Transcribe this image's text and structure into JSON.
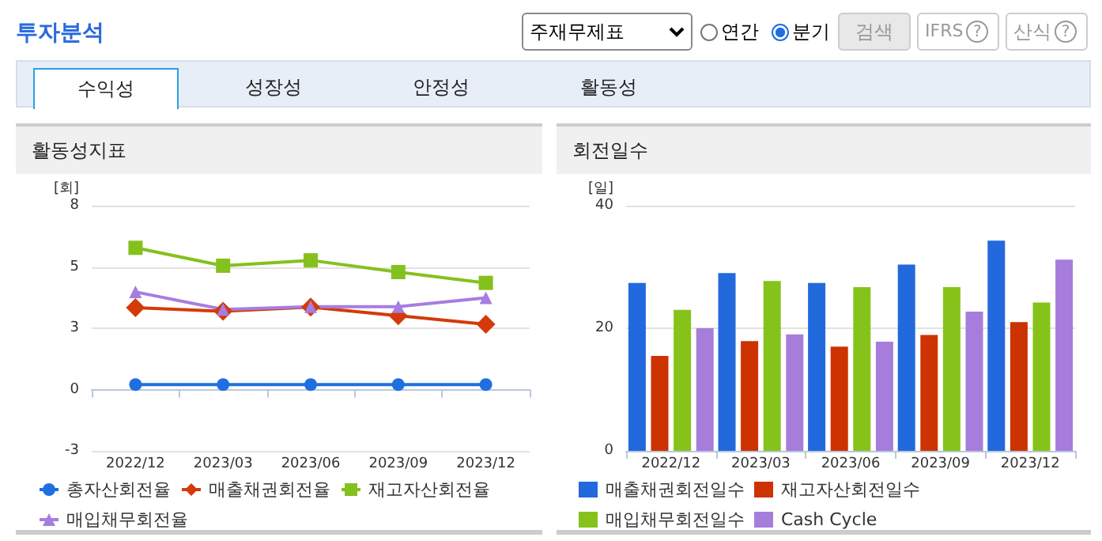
{
  "chart_data": [
    {
      "type": "other",
      "title": "투자분석",
      "annotations": [
        "주재무제표",
        "연간",
        "분기",
        "검색",
        "IFRS",
        "산식",
        "수익성",
        "성장성",
        "안정성",
        "활동성",
        "?",
        "?"
      ]
    },
    {
      "type": "line",
      "title": "활동성지표",
      "ylabel": "[회]",
      "categories": [
        "2022/12",
        "2023/03",
        "2023/06",
        "2023/09",
        "2023/12"
      ],
      "ylim": [
        -2.5,
        7.5
      ],
      "yticks": [
        {
          "value": -2.5,
          "label": "-3"
        },
        0,
        {
          "value": 2.5,
          "label": "3"
        },
        5,
        {
          "value": 7.5,
          "label": "8"
        }
      ],
      "grid": "y",
      "legend": "bottom",
      "series": [
        {
          "name": "총자산회전율",
          "color": "#1f6fe0",
          "marker": "circle",
          "values": [
            0.2,
            0.2,
            0.2,
            0.2,
            0.2
          ]
        },
        {
          "name": "매출채권회전율",
          "color": "#d43a0a",
          "marker": "diamond",
          "values": [
            3.34,
            3.19,
            3.36,
            3.01,
            2.66
          ]
        },
        {
          "name": "재고자산회전율",
          "color": "#84c11e",
          "marker": "square",
          "values": [
            5.78,
            5.05,
            5.27,
            4.79,
            4.35
          ]
        },
        {
          "name": "매입채무회전율",
          "color": "#a67de0",
          "marker": "triangle",
          "values": [
            3.98,
            3.27,
            3.38,
            3.38,
            3.74
          ]
        }
      ]
    },
    {
      "type": "bar",
      "title": "회전일수",
      "ylabel": "[일]",
      "categories": [
        "2022/12",
        "2023/03",
        "2023/06",
        "2023/09",
        "2023/12"
      ],
      "ylim": [
        0,
        40
      ],
      "yticks": [
        0,
        20,
        40
      ],
      "grid": "y",
      "legend": "bottom",
      "series": [
        {
          "name": "매출채권회전일수",
          "color": "#2269dd",
          "values": [
            27.4,
            29.0,
            27.4,
            30.4,
            34.3
          ]
        },
        {
          "name": "재고자산회전일수",
          "color": "#cc3300",
          "values": [
            15.5,
            17.9,
            17.0,
            18.9,
            21.0
          ]
        },
        {
          "name": "매입채무회전일수",
          "color": "#86c31a",
          "values": [
            23.0,
            27.7,
            26.7,
            26.7,
            24.2
          ]
        },
        {
          "name": "Cash Cycle",
          "color": "#a77ddb",
          "values": [
            20.0,
            19.0,
            17.8,
            22.7,
            31.2
          ]
        }
      ]
    }
  ]
}
